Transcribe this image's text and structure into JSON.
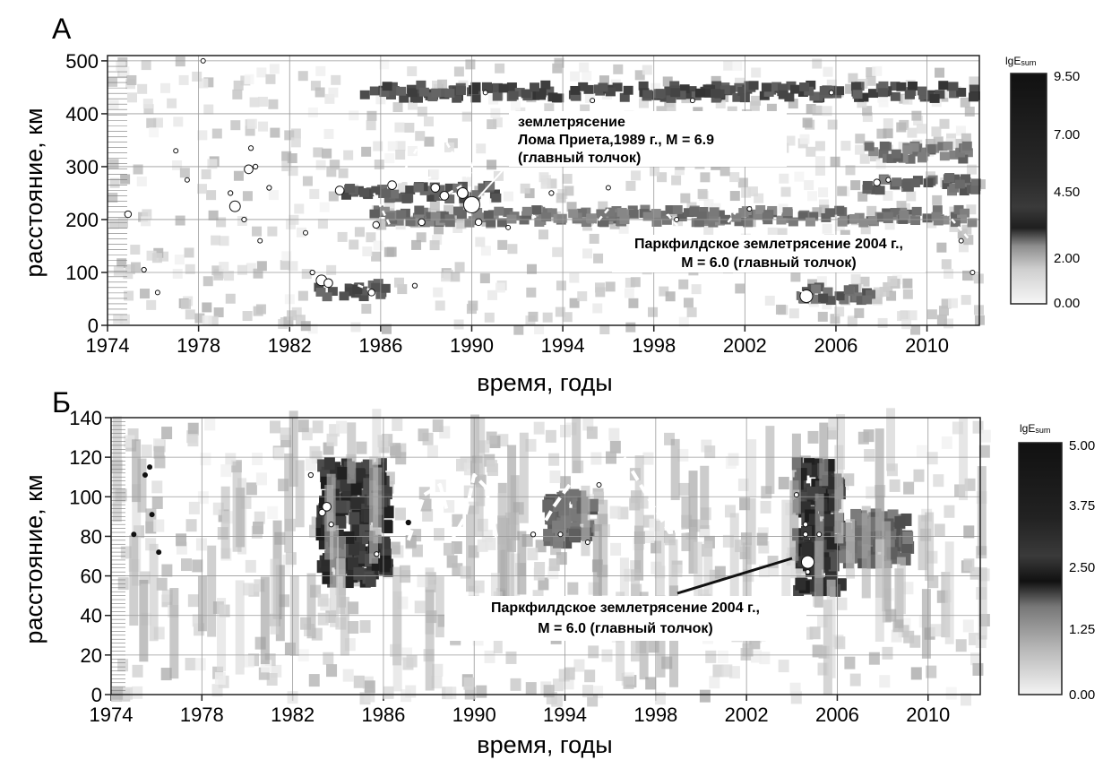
{
  "panels": [
    {
      "letter": "А",
      "ylabel": "расстояние, км",
      "xlabel": "время, годы",
      "x_ticks": [
        "1974",
        "1978",
        "1982",
        "1986",
        "1990",
        "1994",
        "1998",
        "2002",
        "2006",
        "2010"
      ],
      "y_ticks": [
        "0",
        "100",
        "200",
        "300",
        "400",
        "500"
      ],
      "colorbar": {
        "title_main": "lgE",
        "title_sub": "sum",
        "ticks": [
          "9.50",
          "7.00",
          "4.50",
          "2.00",
          "0.00"
        ]
      },
      "annotations": [
        {
          "lines": [
            "землетрясение",
            "Лома Приета,1989 г., M = 6.9",
            "(главный толчок)"
          ]
        },
        {
          "lines": [
            "Паркфилдское землетрясение 2004 г.,",
            "M = 6.0 (главный толчок)"
          ]
        }
      ]
    },
    {
      "letter": "Б",
      "ylabel": "расстояние, км",
      "xlabel": "время, годы",
      "x_ticks": [
        "1974",
        "1978",
        "1982",
        "1986",
        "1990",
        "1994",
        "1998",
        "2002",
        "2006",
        "2010"
      ],
      "y_ticks": [
        "0",
        "20",
        "40",
        "60",
        "80",
        "100",
        "120",
        "140"
      ],
      "colorbar": {
        "title_main": "lgE",
        "title_sub": "sum",
        "ticks": [
          "5.00",
          "3.75",
          "2.50",
          "1.25",
          "0.00"
        ]
      },
      "annotations": [
        {
          "lines": [
            "Паркфилдское землетрясение 2004 г.,",
            "M = 6.0 (главный толчок)"
          ]
        }
      ]
    }
  ],
  "chart_data": [
    {
      "type": "heatmap",
      "title": "А",
      "xlabel": "время, годы",
      "ylabel": "расстояние, км",
      "xlim": [
        1974,
        2012.3
      ],
      "ylim": [
        0,
        510
      ],
      "grid": true,
      "colorscale": "white-to-black",
      "colorbar_label": "lgEsum",
      "colorbar_ticks": [
        0.0,
        2.0,
        4.5,
        7.0,
        9.5
      ],
      "bands": [
        {
          "x": [
            1985.0,
            2012.0
          ],
          "y": 450,
          "intensity": 0.85
        },
        {
          "x": [
            1984.0,
            1991.0
          ],
          "y": 260,
          "intensity": 0.75
        },
        {
          "x": [
            1985.5,
            2012.0
          ],
          "y": 215,
          "intensity": 0.55
        },
        {
          "x": [
            2007.0,
            2012.0
          ],
          "y": 275,
          "intensity": 0.65
        },
        {
          "x": [
            2007.0,
            2012.0
          ],
          "y": 335,
          "intensity": 0.55
        },
        {
          "x": [
            1983.0,
            1986.0
          ],
          "y": 75,
          "intensity": 0.8
        },
        {
          "x": [
            2004.0,
            2007.5
          ],
          "y": 68,
          "intensity": 0.7
        }
      ],
      "events": [
        {
          "t": 1974.9,
          "d": 210,
          "m": 4.5
        },
        {
          "t": 1975.6,
          "d": 105,
          "m": 4
        },
        {
          "t": 1976.2,
          "d": 62,
          "m": 3.5
        },
        {
          "t": 1977.0,
          "d": 330,
          "m": 3.5
        },
        {
          "t": 1977.5,
          "d": 275,
          "m": 3.5
        },
        {
          "t": 1978.2,
          "d": 500,
          "m": 3.5
        },
        {
          "t": 1979.4,
          "d": 250,
          "m": 4
        },
        {
          "t": 1979.6,
          "d": 225,
          "m": 5.5
        },
        {
          "t": 1980.0,
          "d": 200,
          "m": 4
        },
        {
          "t": 1980.2,
          "d": 295,
          "m": 5
        },
        {
          "t": 1980.3,
          "d": 335,
          "m": 4
        },
        {
          "t": 1980.5,
          "d": 300,
          "m": 4
        },
        {
          "t": 1980.7,
          "d": 160,
          "m": 3.5
        },
        {
          "t": 1981.1,
          "d": 260,
          "m": 4
        },
        {
          "t": 1982.7,
          "d": 175,
          "m": 3.5
        },
        {
          "t": 1983.0,
          "d": 100,
          "m": 4
        },
        {
          "t": 1983.4,
          "d": 85,
          "m": 5.5
        },
        {
          "t": 1983.7,
          "d": 80,
          "m": 5
        },
        {
          "t": 1984.2,
          "d": 255,
          "m": 5
        },
        {
          "t": 1985.6,
          "d": 62,
          "m": 4.5
        },
        {
          "t": 1985.8,
          "d": 190,
          "m": 4.5
        },
        {
          "t": 1986.5,
          "d": 265,
          "m": 5
        },
        {
          "t": 1987.5,
          "d": 75,
          "m": 4
        },
        {
          "t": 1987.8,
          "d": 195,
          "m": 4.5
        },
        {
          "t": 1988.4,
          "d": 260,
          "m": 5
        },
        {
          "t": 1988.8,
          "d": 245,
          "m": 5
        },
        {
          "t": 1989.6,
          "d": 250,
          "m": 5.5
        },
        {
          "t": 1990.0,
          "d": 228,
          "m": 6.9
        },
        {
          "t": 1990.3,
          "d": 195,
          "m": 4.5
        },
        {
          "t": 1990.6,
          "d": 440,
          "m": 3.5
        },
        {
          "t": 1991.6,
          "d": 185,
          "m": 3.5
        },
        {
          "t": 1993.5,
          "d": 250,
          "m": 4
        },
        {
          "t": 1995.3,
          "d": 425,
          "m": 3.5
        },
        {
          "t": 1996.0,
          "d": 260,
          "m": 3.5
        },
        {
          "t": 1999.0,
          "d": 200,
          "m": 3.5
        },
        {
          "t": 1999.7,
          "d": 425,
          "m": 3.5
        },
        {
          "t": 2000.5,
          "d": 380,
          "m": 4
        },
        {
          "t": 2002.2,
          "d": 220,
          "m": 3.5
        },
        {
          "t": 2004.7,
          "d": 55,
          "m": 6.0
        },
        {
          "t": 2005.8,
          "d": 440,
          "m": 3.5
        },
        {
          "t": 2007.8,
          "d": 270,
          "m": 4.5
        },
        {
          "t": 2008.3,
          "d": 275,
          "m": 4
        },
        {
          "t": 2011.5,
          "d": 160,
          "m": 3.5
        },
        {
          "t": 2012.0,
          "d": 100,
          "m": 3.5
        }
      ]
    },
    {
      "type": "heatmap",
      "title": "Б",
      "xlabel": "время, годы",
      "ylabel": "расстояние, км",
      "xlim": [
        1974,
        2012.3
      ],
      "ylim": [
        0,
        140
      ],
      "grid": true,
      "colorscale": "white-to-black",
      "colorbar_label": "lgEsum",
      "colorbar_ticks": [
        0.0,
        1.25,
        2.5,
        3.75,
        5.0
      ],
      "blobs": [
        {
          "x": [
            1983.0,
            1986.0
          ],
          "y": [
            60,
            120
          ],
          "intensity": 0.95
        },
        {
          "x": [
            1993.0,
            1995.0
          ],
          "y": [
            78,
            105
          ],
          "intensity": 0.6
        },
        {
          "x": [
            2004.0,
            2006.0
          ],
          "y": [
            55,
            120
          ],
          "intensity": 0.95
        },
        {
          "x": [
            2006.0,
            2009.0
          ],
          "y": [
            70,
            95
          ],
          "intensity": 0.6
        }
      ],
      "events": [
        {
          "t": 1975.0,
          "d": 81,
          "m": 3.5
        },
        {
          "t": 1975.5,
          "d": 111,
          "m": 3.5
        },
        {
          "t": 1975.7,
          "d": 115,
          "m": 3.5
        },
        {
          "t": 1975.8,
          "d": 91,
          "m": 3.5
        },
        {
          "t": 1976.1,
          "d": 72,
          "m": 3.5
        },
        {
          "t": 1982.8,
          "d": 111,
          "m": 4
        },
        {
          "t": 1983.3,
          "d": 92,
          "m": 4.5
        },
        {
          "t": 1983.5,
          "d": 95,
          "m": 5
        },
        {
          "t": 1983.7,
          "d": 86,
          "m": 4
        },
        {
          "t": 1985.7,
          "d": 71,
          "m": 4
        },
        {
          "t": 1987.1,
          "d": 87,
          "m": 4
        },
        {
          "t": 1992.6,
          "d": 81,
          "m": 4
        },
        {
          "t": 1993.8,
          "d": 81,
          "m": 3.5
        },
        {
          "t": 1995.0,
          "d": 77,
          "m": 3.5
        },
        {
          "t": 1995.5,
          "d": 106,
          "m": 3.5
        },
        {
          "t": 2004.2,
          "d": 101,
          "m": 3.5
        },
        {
          "t": 2004.6,
          "d": 86,
          "m": 4
        },
        {
          "t": 2004.6,
          "d": 81,
          "m": 4
        },
        {
          "t": 2004.7,
          "d": 67,
          "m": 6.0
        },
        {
          "t": 2004.7,
          "d": 62,
          "m": 3.5
        },
        {
          "t": 2005.2,
          "d": 81,
          "m": 3.5
        }
      ]
    }
  ]
}
